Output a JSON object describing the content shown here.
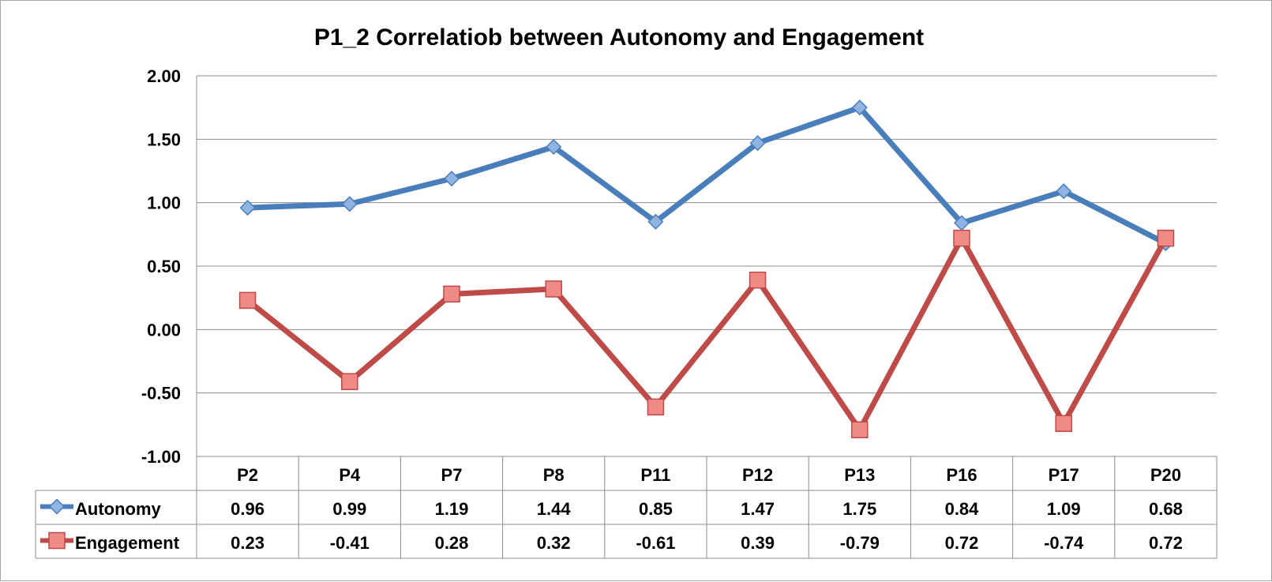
{
  "chart_data": {
    "type": "line",
    "title": "P1_2 Correlatiob between Autonomy and Engagement",
    "categories": [
      "P2",
      "P4",
      "P7",
      "P8",
      "P11",
      "P12",
      "P13",
      "P16",
      "P17",
      "P20"
    ],
    "series": [
      {
        "name": "Autonomy",
        "color": "#4a7ebb",
        "marker": "diamond",
        "values": [
          0.96,
          0.99,
          1.19,
          1.44,
          0.85,
          1.47,
          1.75,
          0.84,
          1.09,
          0.68
        ],
        "labels": [
          "0.96",
          "0.99",
          "1.19",
          "1.44",
          "0.85",
          "1.47",
          "1.75",
          "0.84",
          "1.09",
          "0.68"
        ]
      },
      {
        "name": "Engagement",
        "color": "#be4b48",
        "marker": "square",
        "values": [
          0.23,
          -0.41,
          0.28,
          0.32,
          -0.61,
          0.39,
          -0.79,
          0.72,
          -0.74,
          0.72
        ],
        "labels": [
          "0.23",
          "-0.41",
          "0.28",
          "0.32",
          "-0.61",
          "0.39",
          "-0.79",
          "0.72",
          "-0.74",
          "0.72"
        ]
      }
    ],
    "ylim": [
      -1.0,
      2.0
    ],
    "yticks": [
      "-1.00",
      "-0.50",
      "0.00",
      "0.50",
      "1.00",
      "1.50",
      "2.00"
    ],
    "grid": true,
    "legend": "data-table"
  }
}
